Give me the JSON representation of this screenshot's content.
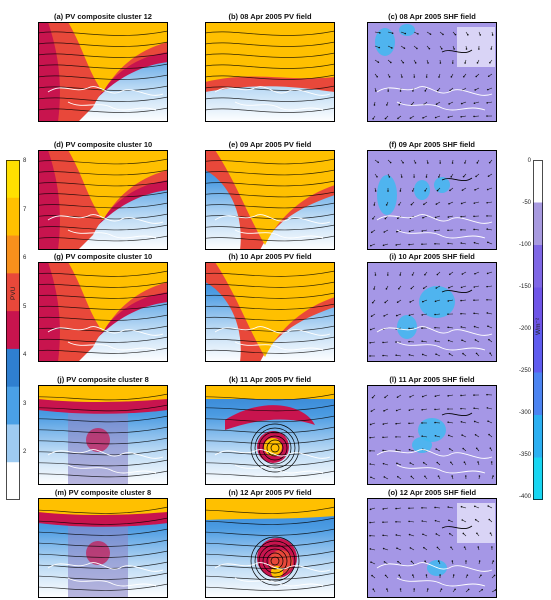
{
  "panels": [
    {
      "title": "(a) PV composite cluster 12",
      "kind": "pvc",
      "variant": 0
    },
    {
      "title": "(b) 08 Apr 2005 PV field",
      "kind": "pvf",
      "variant": 0
    },
    {
      "title": "(c) 08 Apr 2005 SHF field",
      "kind": "shf",
      "variant": 0
    },
    {
      "title": "(d) PV composite cluster 10",
      "kind": "pvc",
      "variant": 1
    },
    {
      "title": "(e) 09 Apr 2005 PV field",
      "kind": "pvf",
      "variant": 1
    },
    {
      "title": "(f) 09 Apr 2005 SHF field",
      "kind": "shf",
      "variant": 1
    },
    {
      "title": "(g) PV composite cluster 10",
      "kind": "pvc",
      "variant": 2
    },
    {
      "title": "(h) 10 Apr 2005 PV field",
      "kind": "pvf",
      "variant": 2
    },
    {
      "title": "(i) 10 Apr 2005 SHF field",
      "kind": "shf",
      "variant": 2
    },
    {
      "title": "(j) PV composite cluster 8",
      "kind": "pvc",
      "variant": 3
    },
    {
      "title": "(k) 11 Apr 2005 PV field",
      "kind": "pvf",
      "variant": 3
    },
    {
      "title": "(l) 11 Apr 2005 SHF field",
      "kind": "shf",
      "variant": 3
    },
    {
      "title": "(m) PV composite cluster 8",
      "kind": "pvc",
      "variant": 4
    },
    {
      "title": "(n) 12 Apr 2005 PV field",
      "kind": "pvf",
      "variant": 4
    },
    {
      "title": "(o) 12 Apr 2005 SHF field",
      "kind": "shf",
      "variant": 4
    }
  ],
  "pv_colorbar": {
    "label": "PVU",
    "ticks": [
      "8",
      "7",
      "6",
      "5",
      "4",
      "3",
      "2"
    ],
    "colors": [
      "#ffe000",
      "#ffc000",
      "#f8901c",
      "#e8483a",
      "#c8144e",
      "#2f7fd0",
      "#4aa0e6",
      "#9ecbf2",
      "#ffffff"
    ]
  },
  "shf_colorbar": {
    "label": "Wm⁻²",
    "ticks": [
      "0",
      "-50",
      "-100",
      "-150",
      "-200",
      "-250",
      "-300",
      "-350",
      "-400"
    ],
    "colors": [
      "#ffffff",
      "#a89ae0",
      "#7f67e6",
      "#6f55e8",
      "#5f5cf0",
      "#4c84f2",
      "#2cb0f2",
      "#18d6f2"
    ]
  }
}
